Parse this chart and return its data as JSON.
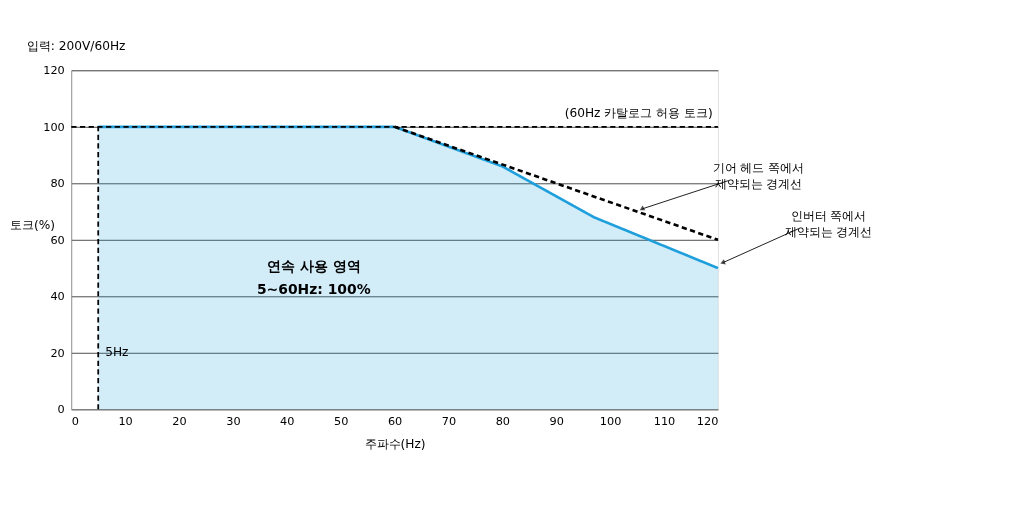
{
  "chart_data": {
    "type": "line",
    "title": "입력: 200V/60Hz",
    "xlabel": "주파수(Hz)",
    "ylabel": "토크(%)",
    "xlim": [
      0,
      120
    ],
    "xticks": [
      0,
      10,
      20,
      30,
      40,
      50,
      60,
      70,
      80,
      90,
      100,
      110,
      120
    ],
    "ylim": [
      0,
      120
    ],
    "yticks": [
      0,
      20,
      40,
      60,
      80,
      100,
      120
    ],
    "grid": "y",
    "series": [
      {
        "type": "area",
        "color": "#1e9fdc",
        "x": [
          5,
          60,
          80,
          97,
          120
        ],
        "values": [
          100,
          100,
          86,
          68,
          50
        ]
      },
      {
        "color": "#000000",
        "line_style": "dashed",
        "x": [
          60,
          120
        ],
        "values": [
          100,
          60
        ]
      }
    ],
    "ref_lines": [
      {
        "axis": "y",
        "value": 100,
        "label": "(60Hz 카탈로그 허용 토크)",
        "color": "#000000",
        "line_style": "dashed"
      },
      {
        "axis": "x",
        "value": 5,
        "label": "5Hz",
        "color": "#000000",
        "line_style": "dashed"
      }
    ],
    "annotations": [
      "연속 사용 영역",
      "5~60Hz: 100%",
      {
        "text": "기어 헤드 쪽에서\n제약되는 경계선",
        "x": 105,
        "y": 70
      },
      {
        "text": "인버터 쪽에서\n제약되는 경계선",
        "x": 120,
        "y": 51
      }
    ]
  }
}
